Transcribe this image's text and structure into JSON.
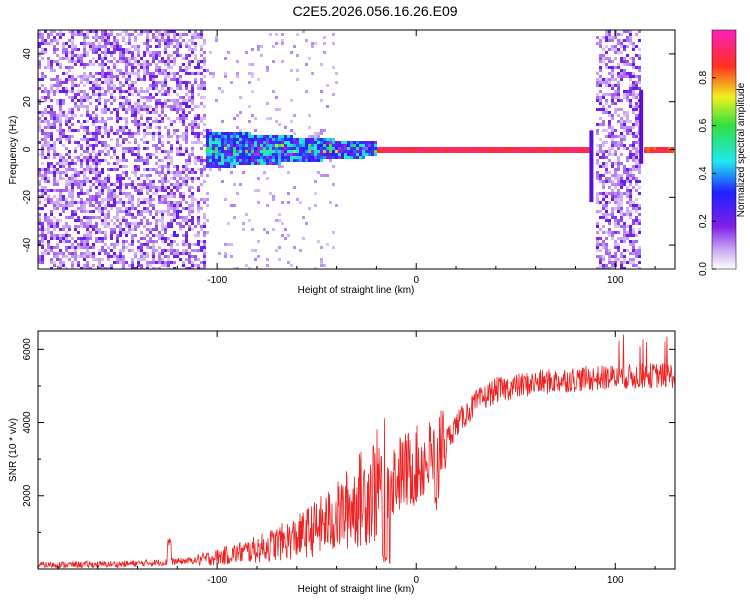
{
  "title": "C2E5.2026.056.16.26.E09",
  "chart_data": [
    {
      "type": "heatmap",
      "xlabel": "Height of straight line (km)",
      "ylabel": "Frequency (Hz)",
      "xlim": [
        -190,
        130
      ],
      "ylim": [
        -50,
        50
      ],
      "x_ticks": [
        -100,
        0,
        100
      ],
      "x_tick_labels": [
        "-100",
        "0",
        "100"
      ],
      "y_ticks": [
        -40,
        -20,
        0,
        20,
        40
      ],
      "y_tick_labels": [
        "-40",
        "-20",
        "0",
        "20",
        "40"
      ],
      "colorbar": {
        "label": "Normalized spectral amplitude",
        "range": [
          0,
          1
        ],
        "ticks": [
          0.0,
          0.2,
          0.4,
          0.6,
          0.8
        ],
        "tick_labels": [
          "0.0",
          "0.2",
          "0.4",
          "0.6",
          "0.8"
        ],
        "colors": [
          "#ffffff",
          "#c9a8f5",
          "#7f1fe8",
          "#2020ff",
          "#20e8f0",
          "#30e040",
          "#f0f020",
          "#ff3020",
          "#ff20c0"
        ]
      },
      "regions": [
        {
          "name": "broadband noise",
          "x_range": [
            -190,
            -105
          ],
          "f_range": [
            -50,
            50
          ],
          "amplitude": 0.12
        },
        {
          "name": "narrowing carrier",
          "x_range": [
            -105,
            -20
          ],
          "f_range": [
            -8,
            8
          ],
          "amplitude": 0.3
        },
        {
          "name": "clean carrier",
          "x_range": [
            -20,
            88
          ],
          "f_range": [
            -1,
            1
          ],
          "amplitude": 0.9
        },
        {
          "name": "noise burst",
          "x_range": [
            90,
            113
          ],
          "f_range": [
            -50,
            50
          ],
          "amplitude": 0.15
        },
        {
          "name": "recovered carrier",
          "x_range": [
            115,
            130
          ],
          "f_range": [
            -1,
            1
          ],
          "amplitude": 0.85
        }
      ]
    },
    {
      "type": "line",
      "xlabel": "Height of straight line (km)",
      "ylabel": "SNR (10 * v/v)",
      "xlim": [
        -190,
        130
      ],
      "ylim": [
        0,
        6500
      ],
      "x_ticks": [
        -100,
        0,
        100
      ],
      "x_tick_labels": [
        "-100",
        "0",
        "100"
      ],
      "y_ticks": [
        2000,
        4000,
        6000
      ],
      "y_tick_labels": [
        "2000",
        "4000",
        "6000"
      ],
      "series": [
        {
          "name": "SNR",
          "color": "#ee2222",
          "x": [
            -190,
            -150,
            -125,
            -110,
            -100,
            -80,
            -60,
            -40,
            -25,
            -15,
            0,
            10,
            12,
            20,
            30,
            40,
            60,
            80,
            100,
            120,
            130
          ],
          "y": [
            100,
            120,
            180,
            230,
            300,
            500,
            800,
            1300,
            1900,
            2300,
            2700,
            3000,
            3200,
            3900,
            4500,
            4850,
            5050,
            5150,
            5200,
            5250,
            5250
          ]
        }
      ]
    }
  ]
}
